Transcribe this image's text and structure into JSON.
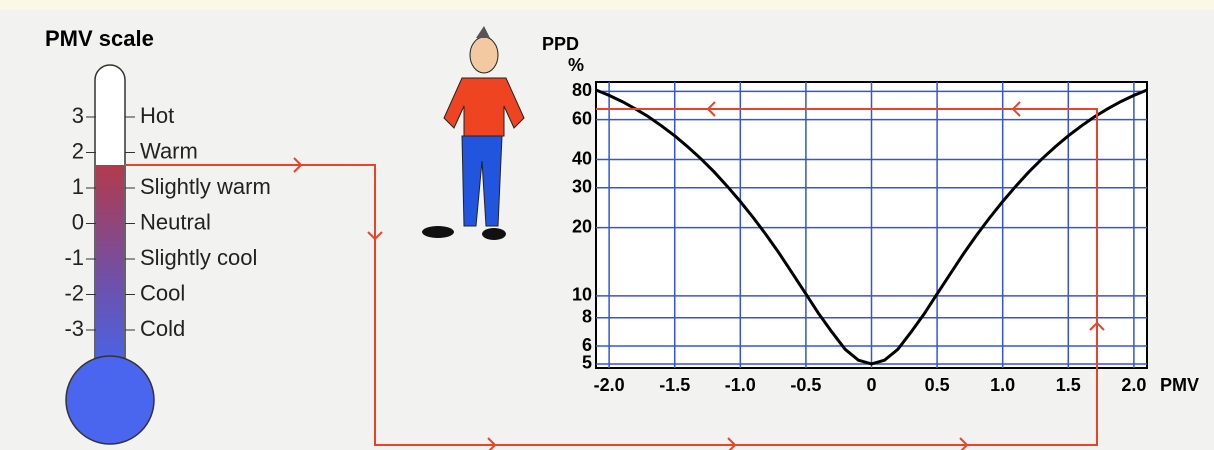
{
  "pmv_scale": {
    "title": "PMV scale",
    "levels": [
      {
        "value": 3,
        "label": "Hot"
      },
      {
        "value": 2,
        "label": "Warm"
      },
      {
        "value": 1,
        "label": "Slightly warm"
      },
      {
        "value": 0,
        "label": "Neutral"
      },
      {
        "value": -1,
        "label": "Slightly cool"
      },
      {
        "value": -2,
        "label": "Cool"
      },
      {
        "value": -3,
        "label": "Cold"
      }
    ]
  },
  "chart_data": {
    "type": "line",
    "y_label": "PPD",
    "y_unit": "%",
    "x_label": "PMV",
    "x": [
      -2.1,
      -2.0,
      -1.9,
      -1.8,
      -1.7,
      -1.6,
      -1.5,
      -1.4,
      -1.3,
      -1.2,
      -1.1,
      -1.0,
      -0.9,
      -0.8,
      -0.7,
      -0.6,
      -0.5,
      -0.4,
      -0.3,
      -0.2,
      -0.1,
      0,
      0.1,
      0.2,
      0.3,
      0.4,
      0.5,
      0.6,
      0.7,
      0.8,
      0.9,
      1.0,
      1.1,
      1.2,
      1.3,
      1.4,
      1.5,
      1.6,
      1.7,
      1.8,
      1.9,
      2.0,
      2.1
    ],
    "series": [
      {
        "color": "#000000",
        "values": [
          81.1,
          76.8,
          72.1,
          67.0,
          61.8,
          56.3,
          50.9,
          45.5,
          40.3,
          35.3,
          30.5,
          26.1,
          22.1,
          18.5,
          15.3,
          12.5,
          10.2,
          8.3,
          6.9,
          5.8,
          5.2,
          5,
          5.2,
          5.8,
          6.9,
          8.3,
          10.2,
          12.5,
          15.3,
          18.5,
          22.1,
          26.1,
          30.5,
          35.3,
          40.3,
          45.5,
          50.9,
          56.3,
          61.8,
          67.0,
          72.1,
          76.8,
          81.1
        ]
      }
    ],
    "xlim": [
      -2.1,
      2.1
    ],
    "xticks": [
      {
        "value": -2,
        "label": "-2.0"
      },
      -1.5,
      {
        "value": -1,
        "label": "-1.0"
      },
      -0.5,
      0,
      0.5,
      {
        "value": 1,
        "label": "1.0"
      },
      1.5,
      {
        "value": 2,
        "label": "2.0"
      }
    ],
    "ylim": [
      4.8,
      88
    ],
    "ylog": true,
    "yticks": [
      5,
      6,
      8,
      10,
      20,
      30,
      40,
      60,
      80
    ],
    "grid": true,
    "grid_color": "#3355dd"
  }
}
